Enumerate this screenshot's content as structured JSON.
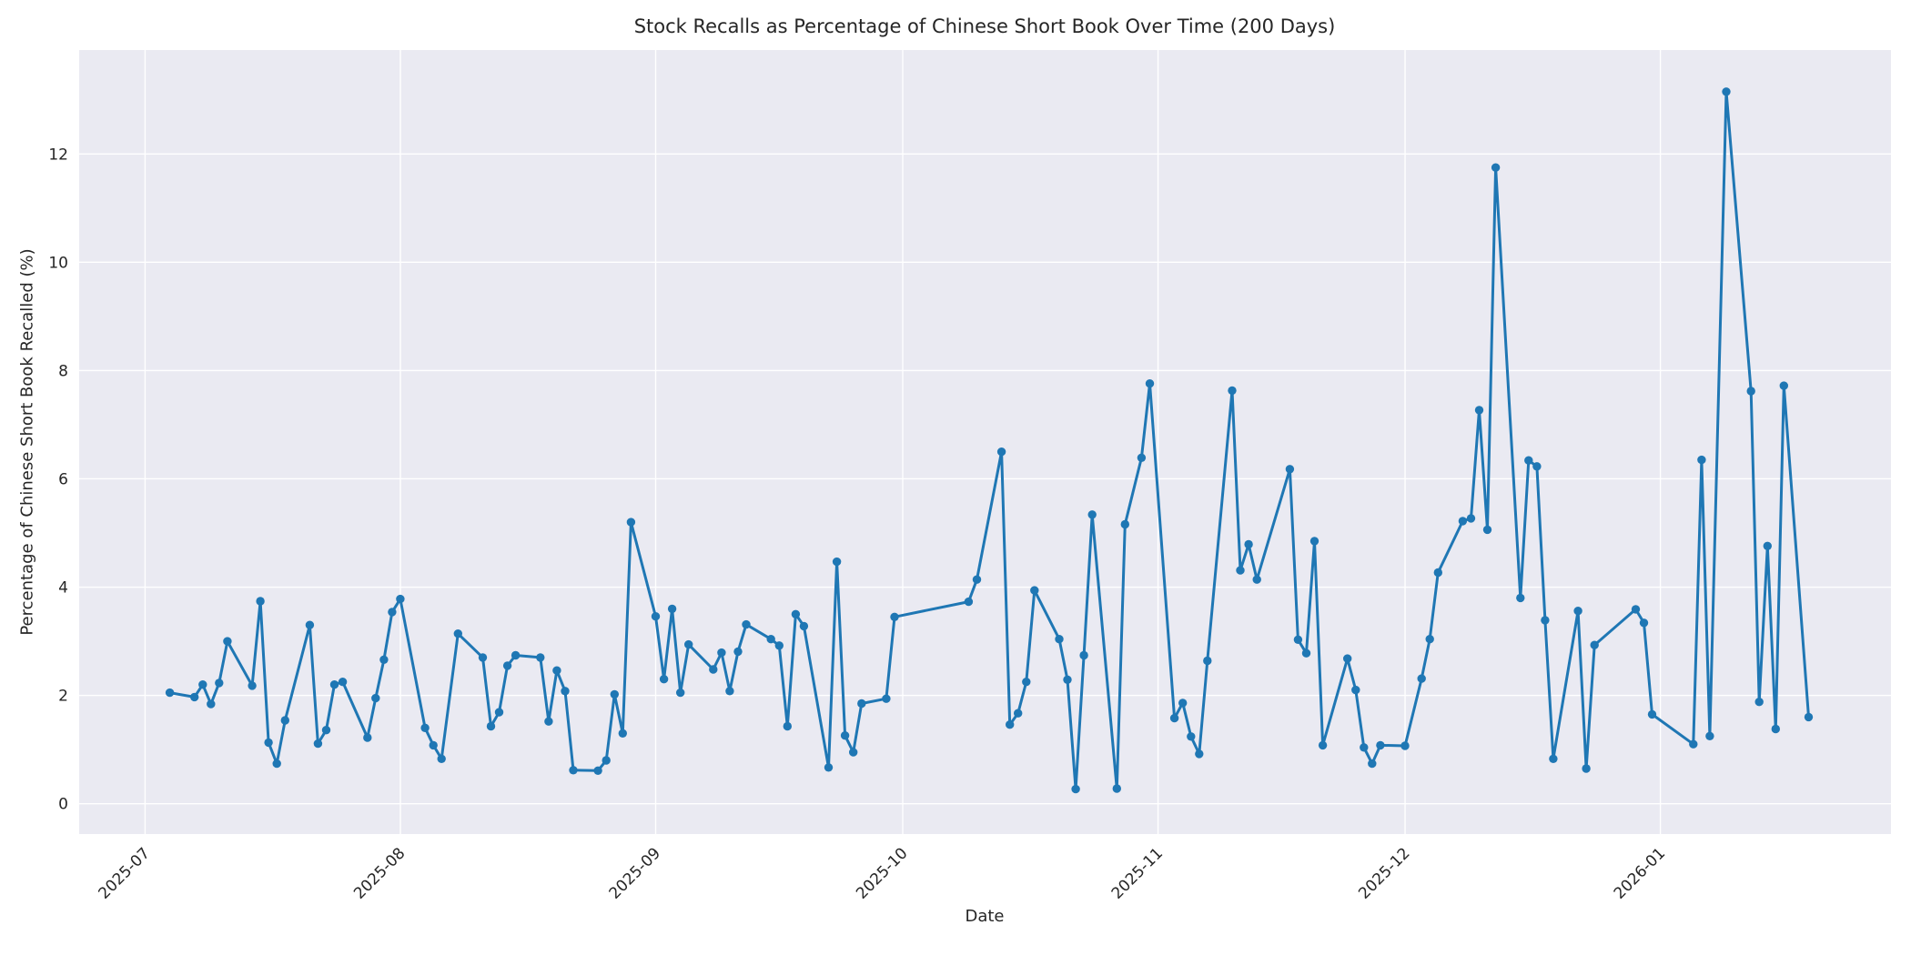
{
  "figure": {
    "title": "Stock Recalls as Percentage of Chinese Short Book Over Time (200 Days)",
    "xlabel": "Date",
    "ylabel": "Percentage of Chinese Short Book Recalled (%)"
  },
  "chart_data": {
    "type": "line",
    "title": "Stock Recalls as Percentage of Chinese Short Book Over Time (200 Days)",
    "xlabel": "Date",
    "ylabel": "Percentage of Chinese Short Book Recalled (%)",
    "legend": "none",
    "grid": "on",
    "plot_background": "#eaeaf2",
    "grid_color": "#ffffff",
    "line_color": "#1f77b4",
    "marker": "o",
    "x_tick_labels": [
      "2025-07",
      "2025-08",
      "2025-09",
      "2025-10",
      "2025-11",
      "2025-12",
      "2026-01"
    ],
    "y_ticks": [
      0,
      2,
      4,
      6,
      8,
      10,
      12
    ],
    "ylim": [
      -0.56,
      13.92
    ],
    "xlim_dates": [
      "2025-06-23",
      "2026-01-29"
    ],
    "dates": [
      "2025-07-04",
      "2025-07-07",
      "2025-07-08",
      "2025-07-09",
      "2025-07-10",
      "2025-07-11",
      "2025-07-14",
      "2025-07-15",
      "2025-07-16",
      "2025-07-17",
      "2025-07-18",
      "2025-07-21",
      "2025-07-22",
      "2025-07-23",
      "2025-07-24",
      "2025-07-25",
      "2025-07-28",
      "2025-07-29",
      "2025-07-30",
      "2025-07-31",
      "2025-08-01",
      "2025-08-04",
      "2025-08-05",
      "2025-08-06",
      "2025-08-08",
      "2025-08-11",
      "2025-08-12",
      "2025-08-13",
      "2025-08-14",
      "2025-08-15",
      "2025-08-18",
      "2025-08-19",
      "2025-08-20",
      "2025-08-21",
      "2025-08-22",
      "2025-08-25",
      "2025-08-26",
      "2025-08-27",
      "2025-08-28",
      "2025-08-29",
      "2025-09-01",
      "2025-09-02",
      "2025-09-03",
      "2025-09-04",
      "2025-09-05",
      "2025-09-08",
      "2025-09-09",
      "2025-09-10",
      "2025-09-11",
      "2025-09-12",
      "2025-09-15",
      "2025-09-16",
      "2025-09-17",
      "2025-09-18",
      "2025-09-19",
      "2025-09-22",
      "2025-09-23",
      "2025-09-24",
      "2025-09-25",
      "2025-09-26",
      "2025-09-29",
      "2025-09-30",
      "2025-10-09",
      "2025-10-10",
      "2025-10-13",
      "2025-10-14",
      "2025-10-15",
      "2025-10-16",
      "2025-10-17",
      "2025-10-20",
      "2025-10-21",
      "2025-10-22",
      "2025-10-23",
      "2025-10-24",
      "2025-10-27",
      "2025-10-28",
      "2025-10-30",
      "2025-10-31",
      "2025-11-03",
      "2025-11-04",
      "2025-11-05",
      "2025-11-06",
      "2025-11-07",
      "2025-11-10",
      "2025-11-11",
      "2025-11-12",
      "2025-11-13",
      "2025-11-17",
      "2025-11-18",
      "2025-11-19",
      "2025-11-20",
      "2025-11-21",
      "2025-11-24",
      "2025-11-25",
      "2025-11-26",
      "2025-11-27",
      "2025-11-28",
      "2025-12-01",
      "2025-12-03",
      "2025-12-04",
      "2025-12-05",
      "2025-12-08",
      "2025-12-09",
      "2025-12-10",
      "2025-12-11",
      "2025-12-12",
      "2025-12-15",
      "2025-12-16",
      "2025-12-17",
      "2025-12-18",
      "2025-12-19",
      "2025-12-22",
      "2025-12-23",
      "2025-12-24",
      "2025-12-29",
      "2025-12-30",
      "2025-12-31",
      "2026-01-05",
      "2026-01-06",
      "2026-01-07",
      "2026-01-09",
      "2026-01-12",
      "2026-01-13",
      "2026-01-14",
      "2026-01-15",
      "2026-01-16",
      "2026-01-19"
    ],
    "values": [
      2.05,
      1.97,
      2.2,
      1.84,
      2.23,
      3.0,
      2.18,
      3.74,
      1.13,
      0.74,
      1.54,
      3.3,
      1.11,
      1.36,
      2.2,
      2.25,
      1.22,
      1.95,
      2.66,
      3.54,
      3.78,
      1.4,
      1.08,
      0.83,
      3.14,
      2.7,
      1.43,
      1.69,
      2.55,
      2.74,
      2.7,
      1.52,
      2.46,
      2.08,
      0.62,
      0.61,
      0.8,
      2.02,
      1.3,
      5.2,
      3.46,
      2.3,
      3.6,
      2.05,
      2.94,
      2.48,
      2.79,
      2.08,
      2.81,
      3.31,
      3.04,
      2.92,
      1.43,
      3.5,
      3.28,
      0.67,
      4.47,
      1.26,
      0.95,
      1.85,
      1.94,
      3.45,
      3.73,
      4.14,
      6.5,
      1.46,
      1.67,
      2.25,
      3.94,
      3.04,
      2.29,
      0.27,
      2.74,
      5.34,
      0.28,
      5.16,
      6.39,
      7.76,
      1.58,
      1.86,
      1.24,
      0.92,
      2.64,
      7.63,
      4.31,
      4.79,
      4.14,
      6.18,
      3.03,
      2.78,
      4.85,
      1.08,
      2.68,
      2.1,
      1.04,
      0.74,
      1.08,
      1.07,
      2.31,
      3.04,
      4.27,
      5.22,
      5.27,
      7.27,
      5.06,
      11.75,
      3.8,
      6.34,
      6.23,
      3.39,
      0.83,
      3.56,
      0.65,
      2.93,
      3.59,
      3.34,
      1.65,
      1.1,
      6.35,
      1.25,
      13.15,
      7.62,
      1.88,
      4.76,
      1.38,
      7.72,
      1.6
    ]
  }
}
